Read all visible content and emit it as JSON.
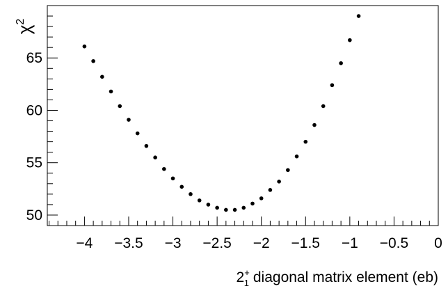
{
  "chart_data": {
    "type": "scatter",
    "title": "",
    "xlabel_parts": {
      "base": "2",
      "sup": "+",
      "sub": "1",
      "rest": " diagonal matrix element (eb)"
    },
    "ylabel_parts": {
      "base": "χ",
      "sup": "2"
    },
    "xlim": [
      -4.42,
      0
    ],
    "ylim": [
      49.0,
      70.0
    ],
    "x_ticks": [
      -4,
      -3.5,
      -3,
      -2.5,
      -2,
      -1.5,
      -1,
      -0.5,
      0
    ],
    "x_tick_labels": [
      "−4",
      "−3.5",
      "−3",
      "−2.5",
      "−2",
      "−1.5",
      "−1",
      "−0.5",
      "0"
    ],
    "y_ticks": [
      50,
      55,
      60,
      65
    ],
    "y_tick_labels": [
      "50",
      "55",
      "60",
      "65"
    ],
    "grid": false,
    "marker_color": "#000000",
    "series": [
      {
        "x": [
          -4.0,
          -3.9,
          -3.8,
          -3.7,
          -3.6,
          -3.5,
          -3.4,
          -3.3,
          -3.2,
          -3.1,
          -3.0,
          -2.9,
          -2.8,
          -2.7,
          -2.6,
          -2.5,
          -2.4,
          -2.3,
          -2.2,
          -2.1,
          -2.0,
          -1.9,
          -1.8,
          -1.7,
          -1.6,
          -1.5,
          -1.4,
          -1.3,
          -1.2,
          -1.1,
          -1.0,
          -0.9
        ],
        "y": [
          66.1,
          64.7,
          63.2,
          61.8,
          60.4,
          59.1,
          57.8,
          56.6,
          55.5,
          54.4,
          53.5,
          52.7,
          52.0,
          51.4,
          51.0,
          50.7,
          50.5,
          50.5,
          50.7,
          51.1,
          51.6,
          52.4,
          53.2,
          54.3,
          55.6,
          57.0,
          58.6,
          60.4,
          62.4,
          64.5,
          66.7,
          69.0
        ]
      }
    ]
  }
}
